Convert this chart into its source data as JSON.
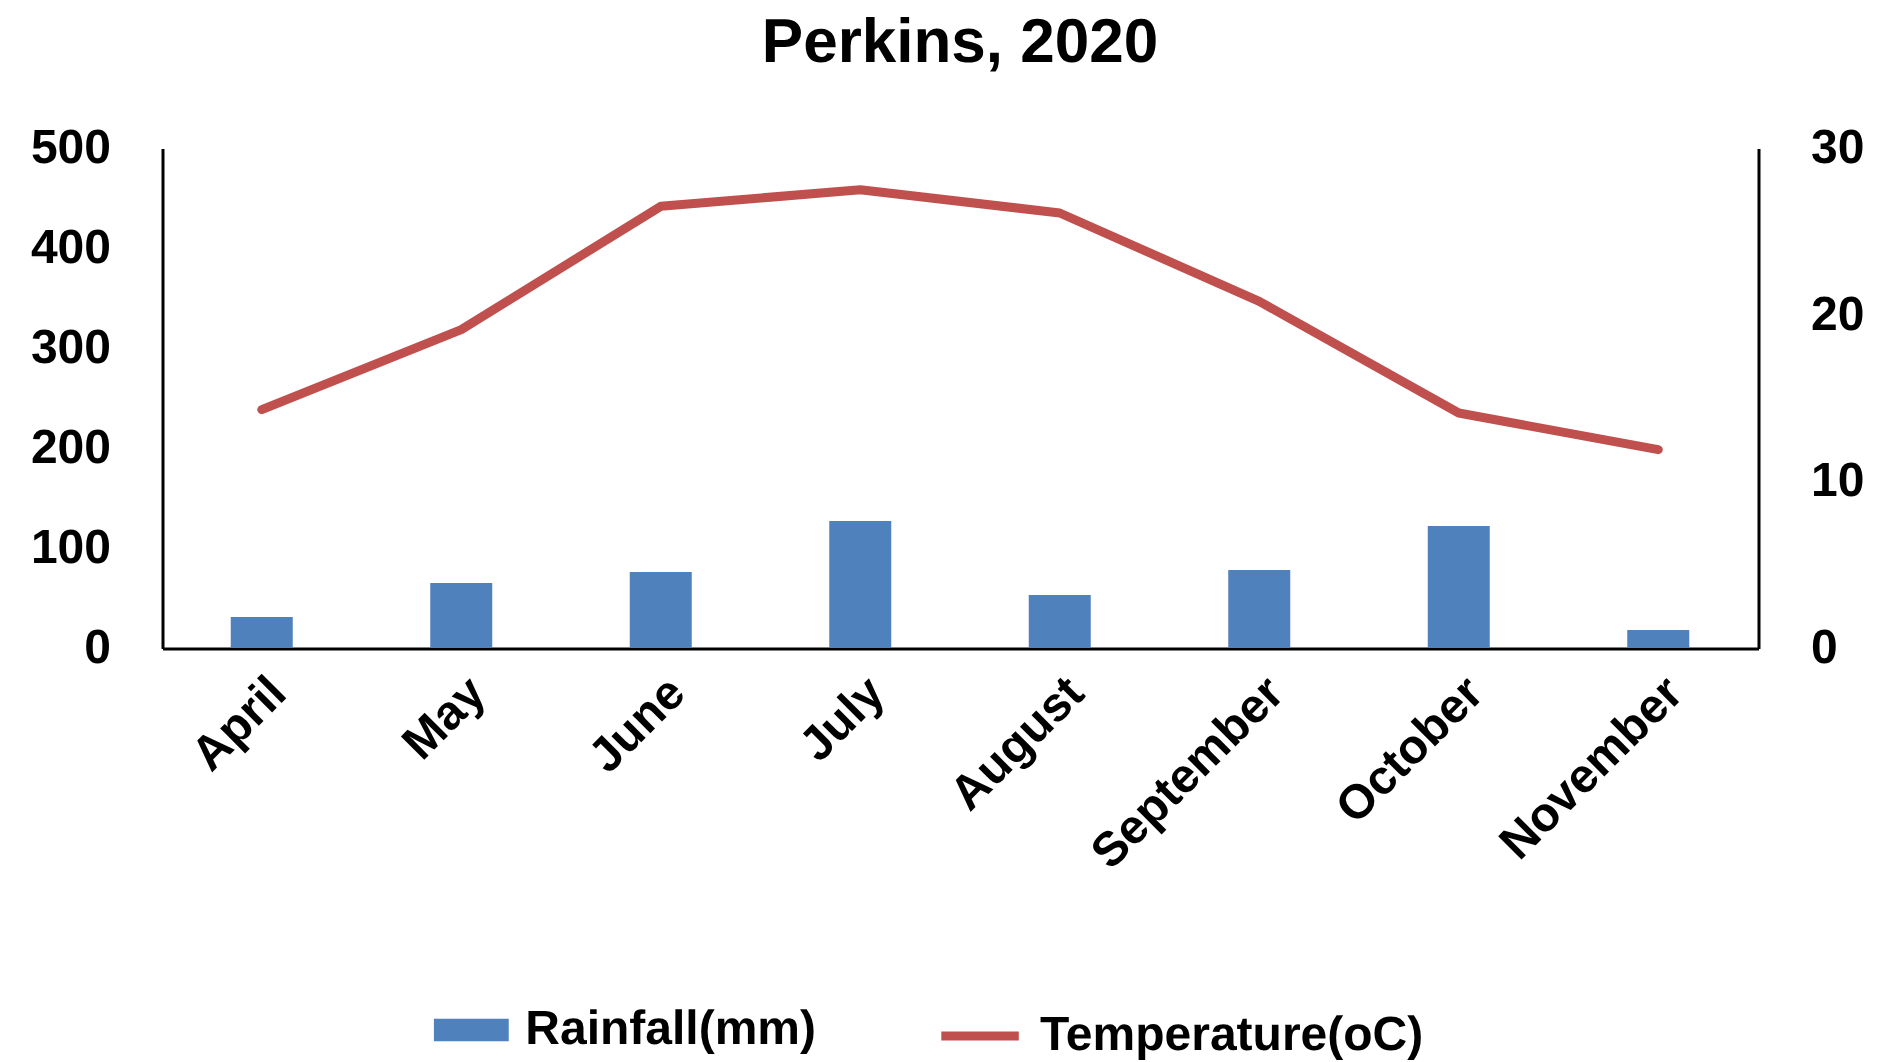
{
  "chart_data": {
    "type": "bar",
    "title": "Perkins, 2020",
    "categories": [
      "April",
      "May",
      "June",
      "July",
      "August",
      "September",
      "October",
      "November"
    ],
    "series": [
      {
        "name": "Rainfall(mm)",
        "color": "#4f81bd",
        "values": [
          31,
          65,
          76,
          127,
          53,
          78,
          122,
          18
        ]
      },
      {
        "name": "Temperature(oC)",
        "type": "line",
        "axis": "y2",
        "color": "#c0504d",
        "values": [
          14.3,
          19.1,
          26.5,
          27.5,
          26.1,
          20.8,
          14.1,
          11.9
        ]
      }
    ],
    "ylim": [
      0,
      500
    ],
    "yticks": [
      0,
      100,
      200,
      300,
      400,
      500
    ],
    "y2lim": [
      0,
      30
    ],
    "y2ticks": [
      0,
      10,
      20,
      30
    ],
    "legend": "bottom"
  }
}
